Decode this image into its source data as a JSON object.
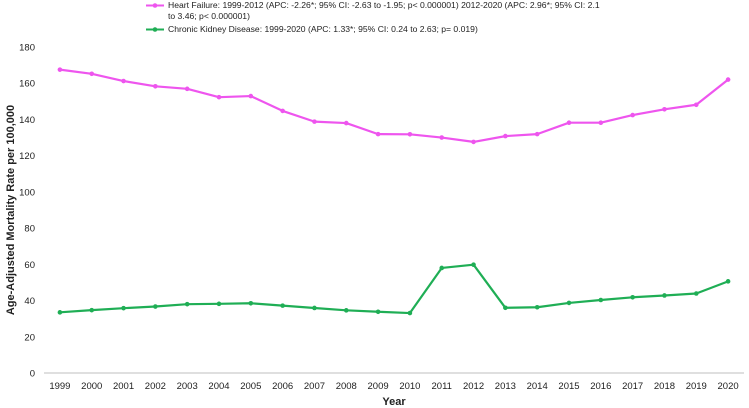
{
  "chart_data": {
    "type": "line",
    "title": "",
    "xlabel": "Year",
    "ylabel": "Age-Adjusted Mortality Rate per 100,000",
    "ylim": [
      0,
      180
    ],
    "yticks": [
      0,
      20,
      40,
      60,
      80,
      100,
      120,
      140,
      160,
      180
    ],
    "grid": false,
    "legend_position": "top",
    "x": [
      "1999",
      "2000",
      "2001",
      "2002",
      "2003",
      "2004",
      "2005",
      "2006",
      "2007",
      "2008",
      "2009",
      "2010",
      "2011",
      "2012",
      "2013",
      "2014",
      "2015",
      "2016",
      "2017",
      "2018",
      "2019",
      "2020"
    ],
    "series": [
      {
        "name": "Heart Failure: 1999-2012 (APC: -2.26*; 95% CI: -2.63 to -1.95; p< 0.000001) 2012-2020 (APC: 2.96*; 95% CI: 2.1 to 3.46; p< 0.000001)",
        "color": "#ee55ee",
        "values": [
          167.5,
          165.2,
          161.2,
          158.3,
          156.9,
          152.3,
          152.9,
          144.7,
          138.8,
          138.0,
          131.9,
          131.8,
          130.0,
          127.6,
          130.8,
          131.9,
          138.2,
          138.2,
          142.4,
          145.6,
          148.1,
          162.0
        ]
      },
      {
        "name": "Chronic Kidney Disease: 1999-2020 (APC: 1.33*; 95% CI: 0.24 to 2.63; p= 0.019)",
        "color": "#1fae55",
        "values": [
          33.5,
          34.7,
          35.8,
          36.7,
          38.0,
          38.2,
          38.5,
          37.2,
          35.9,
          34.6,
          33.8,
          33.1,
          58.0,
          59.8,
          36.0,
          36.3,
          38.7,
          40.3,
          41.8,
          42.8,
          43.9,
          50.6
        ]
      }
    ]
  }
}
